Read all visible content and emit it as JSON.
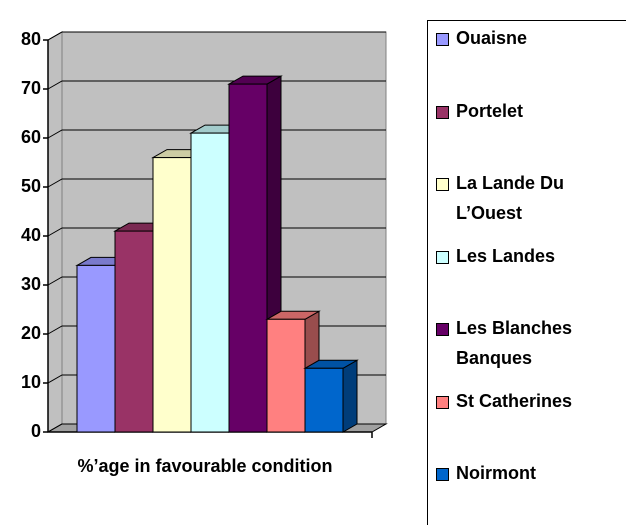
{
  "chart_data": {
    "type": "bar",
    "three_d": true,
    "categories": [
      "%’age in favourable condition"
    ],
    "series": [
      {
        "name": "Ouaisne",
        "color": "#9999ff",
        "values": [
          34
        ]
      },
      {
        "name": "Portelet",
        "color": "#993366",
        "values": [
          41
        ]
      },
      {
        "name": "La Lande Du L’Ouest",
        "color": "#ffffcc",
        "values": [
          56
        ]
      },
      {
        "name": "Les Landes",
        "color": "#ccffff",
        "values": [
          61
        ]
      },
      {
        "name": "Les Blanches Banques",
        "color": "#660066",
        "values": [
          71
        ]
      },
      {
        "name": "St Catherines",
        "color": "#ff8080",
        "values": [
          23
        ]
      },
      {
        "name": "Noirmont",
        "color": "#0066cc",
        "values": [
          13
        ]
      }
    ],
    "ylim": [
      0,
      80
    ],
    "yticks": [
      0,
      10,
      20,
      30,
      40,
      50,
      60,
      70,
      80
    ],
    "grid": true,
    "legend": "right"
  }
}
